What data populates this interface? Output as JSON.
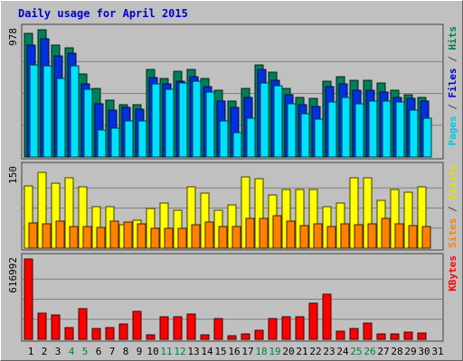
{
  "title": "Daily usage for April 2015",
  "chart_data": {
    "type": "bar",
    "title": "Daily usage for April 2015",
    "x": [
      "1",
      "2",
      "3",
      "4",
      "5",
      "6",
      "7",
      "8",
      "9",
      "10",
      "11",
      "12",
      "13",
      "14",
      "15",
      "16",
      "17",
      "18",
      "19",
      "20",
      "21",
      "22",
      "23",
      "24",
      "25",
      "26",
      "27",
      "28",
      "29",
      "30",
      "31"
    ],
    "weekend_days": [
      "4",
      "5",
      "11",
      "12",
      "18",
      "19",
      "25",
      "26"
    ],
    "panels": [
      {
        "name": "hits-files-pages",
        "ylabel": "Pages / Files / Hits",
        "ylabel_parts": [
          {
            "text": "Pages",
            "color": "#00c8e0"
          },
          {
            "text": " / ",
            "color": "#444444"
          },
          {
            "text": "Files",
            "color": "#0000cc"
          },
          {
            "text": " / ",
            "color": "#444444"
          },
          {
            "text": "Hits",
            "color": "#008040"
          }
        ],
        "ymax_label": "978",
        "ylim": [
          0,
          978
        ],
        "series": [
          {
            "name": "Hits",
            "color": "#00805a",
            "values": [
              950,
              978,
              860,
              840,
              640,
              525,
              440,
              400,
              400,
              670,
              600,
              660,
              670,
              600,
              510,
              430,
              530,
              710,
              650,
              530,
              460,
              450,
              580,
              620,
              590,
              590,
              570,
              510,
              480,
              460
            ]
          },
          {
            "name": "Files",
            "color": "#0030e0",
            "values": [
              860,
              910,
              780,
              800,
              560,
              410,
              360,
              380,
              370,
              610,
              560,
              580,
              620,
              540,
              430,
              380,
              460,
              670,
              590,
              480,
              400,
              390,
              540,
              560,
              510,
              510,
              500,
              460,
              450,
              430
            ]
          },
          {
            "name": "Pages",
            "color": "#00e0ff",
            "values": [
              710,
              700,
              600,
              700,
              520,
              210,
              220,
              280,
              280,
              560,
              520,
              570,
              580,
              500,
              280,
              190,
              300,
              570,
              550,
              410,
              330,
              290,
              420,
              460,
              410,
              430,
              430,
              420,
              360,
              300
            ]
          }
        ]
      },
      {
        "name": "visits-sites",
        "ylabel": "Sites / Visits",
        "ylabel_parts": [
          {
            "text": "Sites",
            "color": "#ff8000"
          },
          {
            "text": " / ",
            "color": "#444444"
          },
          {
            "text": "Visits",
            "color": "#e0e000"
          }
        ],
        "ymax_label": "150",
        "ylim": [
          0,
          150
        ],
        "series": [
          {
            "name": "Visits",
            "color": "#ffff00",
            "values": [
              117,
              141,
              121,
              131,
              114,
              77,
              77,
              43,
              53,
              74,
              84,
              70,
              114,
              103,
              70,
              81,
              133,
              129,
              100,
              109,
              109,
              109,
              77,
              85,
              132,
              131,
              90,
              109,
              104,
              114
            ]
          },
          {
            "name": "Sites",
            "color": "#ff8000",
            "values": [
              47,
              45,
              51,
              41,
              41,
              38,
              50,
              49,
              45,
              37,
              37,
              37,
              43,
              49,
              41,
              41,
              55,
              56,
              60,
              50,
              42,
              45,
              40,
              45,
              43,
              46,
              55,
              45,
              42,
              41
            ]
          }
        ]
      },
      {
        "name": "kbytes",
        "ylabel": "KBytes",
        "ylabel_parts": [
          {
            "text": "KBytes",
            "color": "#ff0000"
          }
        ],
        "ymax_label": "616992",
        "ylim": [
          0,
          616992
        ],
        "series": [
          {
            "name": "KBytes",
            "color": "#ff0000",
            "values": [
              616992,
              200000,
              185000,
              90000,
              235000,
              80000,
              88000,
              116000,
              216000,
              36000,
              170000,
              170000,
              196000,
              36000,
              160000,
              30000,
              44000,
              66000,
              160000,
              172000,
              172000,
              280000,
              346000,
              63000,
              82000,
              124000,
              40000,
              43000,
              55000,
              50000
            ]
          }
        ]
      }
    ]
  }
}
